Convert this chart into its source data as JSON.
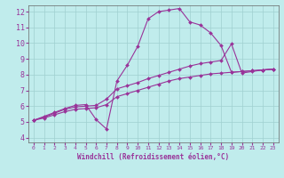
{
  "xlabel": "Windchill (Refroidissement éolien,°C)",
  "background_color": "#c0ecec",
  "grid_color": "#a0d0d0",
  "line_color": "#993399",
  "spine_color": "#666666",
  "xlim": [
    -0.5,
    23.5
  ],
  "ylim": [
    3.7,
    12.4
  ],
  "xticks": [
    0,
    1,
    2,
    3,
    4,
    5,
    6,
    7,
    8,
    9,
    10,
    11,
    12,
    13,
    14,
    15,
    16,
    17,
    18,
    19,
    20,
    21,
    22,
    23
  ],
  "yticks": [
    4,
    5,
    6,
    7,
    8,
    9,
    10,
    11,
    12
  ],
  "line1_x": [
    0,
    1,
    2,
    3,
    4,
    5,
    6,
    7,
    8,
    9,
    10,
    11,
    12,
    13,
    14,
    15,
    16,
    17,
    18,
    19,
    20,
    21,
    22,
    23
  ],
  "line1_y": [
    5.1,
    5.35,
    5.6,
    5.85,
    6.05,
    6.1,
    5.15,
    4.55,
    7.6,
    8.6,
    9.8,
    11.55,
    12.0,
    12.1,
    12.2,
    11.35,
    11.15,
    10.65,
    9.85,
    8.15,
    8.2,
    8.25,
    8.3,
    8.35
  ],
  "line2_x": [
    0,
    1,
    2,
    3,
    4,
    5,
    6,
    7,
    8,
    9,
    10,
    11,
    12,
    13,
    14,
    15,
    16,
    17,
    18,
    19,
    20,
    21,
    22,
    23
  ],
  "line2_y": [
    5.1,
    5.3,
    5.55,
    5.8,
    5.95,
    6.0,
    6.05,
    6.45,
    7.1,
    7.3,
    7.5,
    7.75,
    7.95,
    8.15,
    8.35,
    8.55,
    8.7,
    8.8,
    8.9,
    9.95,
    8.1,
    8.2,
    8.3,
    8.35
  ],
  "line3_x": [
    0,
    1,
    2,
    3,
    4,
    5,
    6,
    7,
    8,
    9,
    10,
    11,
    12,
    13,
    14,
    15,
    16,
    17,
    18,
    19,
    20,
    21,
    22,
    23
  ],
  "line3_y": [
    5.1,
    5.25,
    5.45,
    5.65,
    5.8,
    5.85,
    5.9,
    6.1,
    6.6,
    6.8,
    7.0,
    7.2,
    7.4,
    7.6,
    7.75,
    7.85,
    7.95,
    8.05,
    8.1,
    8.15,
    8.2,
    8.25,
    8.3,
    8.35
  ]
}
